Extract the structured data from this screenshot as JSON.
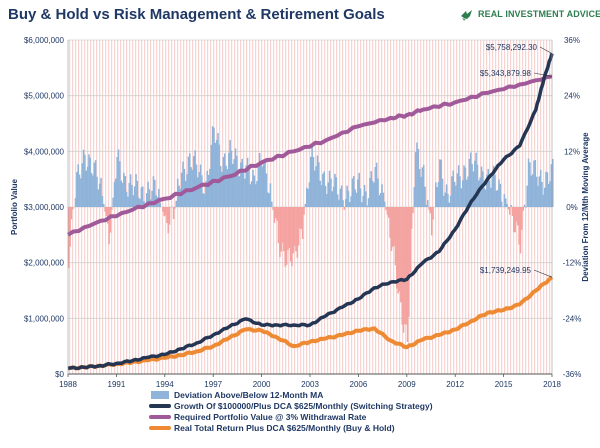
{
  "header": {
    "title": "Buy & Hold vs Risk Management & Retirement Goals",
    "brand": "REAL INVESTMENT ADVICE",
    "brand_icon": "eagle-logo-icon"
  },
  "colors": {
    "growth": "#243653",
    "required": "#a05a9a",
    "buyhold": "#ed8a33",
    "dev_pos": "#8fb3d9",
    "dev_neg": "#f4a3a0",
    "hatch": "#f7d3d1",
    "brand": "#2e7d4f",
    "title": "#1f3864"
  },
  "chart_data": {
    "type": "line",
    "title": "Buy & Hold vs Risk Management & Retirement Goals",
    "xlabel": "",
    "ylabel": "Portfolio Value",
    "ylabel_right": "Deviation From 12/Mth Moving Average",
    "xlim": [
      1988,
      2018
    ],
    "ylim": [
      0,
      6000000
    ],
    "ylim_right": [
      -36,
      36
    ],
    "grid": true,
    "x_ticks": [
      "1988",
      "1991",
      "1994",
      "1997",
      "2000",
      "2003",
      "2006",
      "2009",
      "2012",
      "2015",
      "2018"
    ],
    "y_ticks_left": [
      "$0",
      "$1,000,000",
      "$2,000,000",
      "$3,000,000",
      "$4,000,000",
      "$5,000,000",
      "$6,000,000"
    ],
    "y_ticks_right": [
      "-36%",
      "-24%",
      "-12%",
      "0%",
      "12%",
      "24%",
      "36%"
    ],
    "legend_position": "bottom",
    "series": [
      {
        "name": "Growth Of $100000/Plus DCA $625/Monthly (Switching Strategy)",
        "key": "growth",
        "x": [
          1988,
          1989,
          1990,
          1991,
          1992,
          1993,
          1994,
          1995,
          1996,
          1997,
          1998,
          1999,
          2000,
          2001,
          2002,
          2003,
          2004,
          2005,
          2006,
          2007,
          2008,
          2009,
          2010,
          2011,
          2012,
          2013,
          2014,
          2015,
          2016,
          2017,
          2017.5,
          2018
        ],
        "values": [
          100000,
          120000,
          150000,
          190000,
          240000,
          300000,
          350000,
          450000,
          560000,
          700000,
          850000,
          990000,
          880000,
          880000,
          880000,
          880000,
          1050000,
          1200000,
          1350000,
          1550000,
          1650000,
          1700000,
          2000000,
          2200000,
          2600000,
          3100000,
          3500000,
          3850000,
          4100000,
          4750000,
          5300000,
          5758292.3
        ],
        "end_label": "$5,758,292.30"
      },
      {
        "name": "Required Portfolio Value @ 3% Withdrawal Rate",
        "key": "required",
        "x": [
          1988,
          1990,
          1992,
          1994,
          1996,
          1998,
          2000,
          2002,
          2004,
          2006,
          2008,
          2009,
          2010,
          2012,
          2014,
          2016,
          2018
        ],
        "values": [
          2500000,
          2750000,
          2950000,
          3150000,
          3350000,
          3550000,
          3800000,
          4000000,
          4200000,
          4450000,
          4600000,
          4650000,
          4750000,
          4880000,
          5050000,
          5200000,
          5343879.98
        ],
        "end_label": "$5,343,879.98"
      },
      {
        "name": "Real Total Return Plus DCA $625/Monthly (Buy & Hold)",
        "key": "buyhold",
        "x": [
          1988,
          1989,
          1990,
          1991,
          1992,
          1993,
          1994,
          1995,
          1996,
          1997,
          1998,
          1999,
          2000,
          2001,
          2002,
          2003,
          2004,
          2005,
          2006,
          2007,
          2008,
          2009,
          2010,
          2011,
          2012,
          2013,
          2014,
          2015,
          2016,
          2017,
          2018
        ],
        "values": [
          100000,
          120000,
          150000,
          180000,
          210000,
          250000,
          290000,
          340000,
          410000,
          500000,
          650000,
          800000,
          780000,
          650000,
          500000,
          580000,
          640000,
          700000,
          780000,
          820000,
          600000,
          480000,
          620000,
          700000,
          800000,
          950000,
          1100000,
          1150000,
          1250000,
          1500000,
          1739249.95
        ],
        "end_label": "$1,739,249.95"
      },
      {
        "name": "Deviation Above/Below 12-Month MA",
        "key": "deviation",
        "axis": "right",
        "x": [
          1988,
          1988.5,
          1989,
          1989.5,
          1990,
          1990.5,
          1991,
          1991.5,
          1992,
          1992.5,
          1993,
          1993.5,
          1994,
          1994.5,
          1995,
          1995.5,
          1996,
          1996.5,
          1997,
          1997.5,
          1998,
          1998.5,
          1999,
          1999.5,
          2000,
          2000.5,
          2001,
          2001.5,
          2002,
          2002.5,
          2003,
          2003.5,
          2004,
          2004.5,
          2005,
          2005.5,
          2006,
          2006.5,
          2007,
          2007.5,
          2008,
          2008.5,
          2009,
          2009.5,
          2010,
          2010.5,
          2011,
          2011.5,
          2012,
          2012.5,
          2013,
          2013.5,
          2014,
          2014.5,
          2015,
          2015.5,
          2016,
          2016.5,
          2017,
          2017.5,
          2018
        ],
        "values": [
          -10,
          5,
          12,
          8,
          4,
          -6,
          10,
          6,
          4,
          3,
          4,
          3,
          -3,
          -2,
          8,
          10,
          8,
          5,
          16,
          10,
          12,
          8,
          10,
          4,
          12,
          3,
          -8,
          -10,
          -12,
          -4,
          10,
          8,
          6,
          4,
          3,
          3,
          5,
          3,
          7,
          3,
          -8,
          -20,
          -28,
          12,
          8,
          -5,
          10,
          2,
          6,
          8,
          9,
          8,
          6,
          5,
          3,
          -4,
          -7,
          8,
          7,
          6,
          7
        ]
      }
    ]
  }
}
